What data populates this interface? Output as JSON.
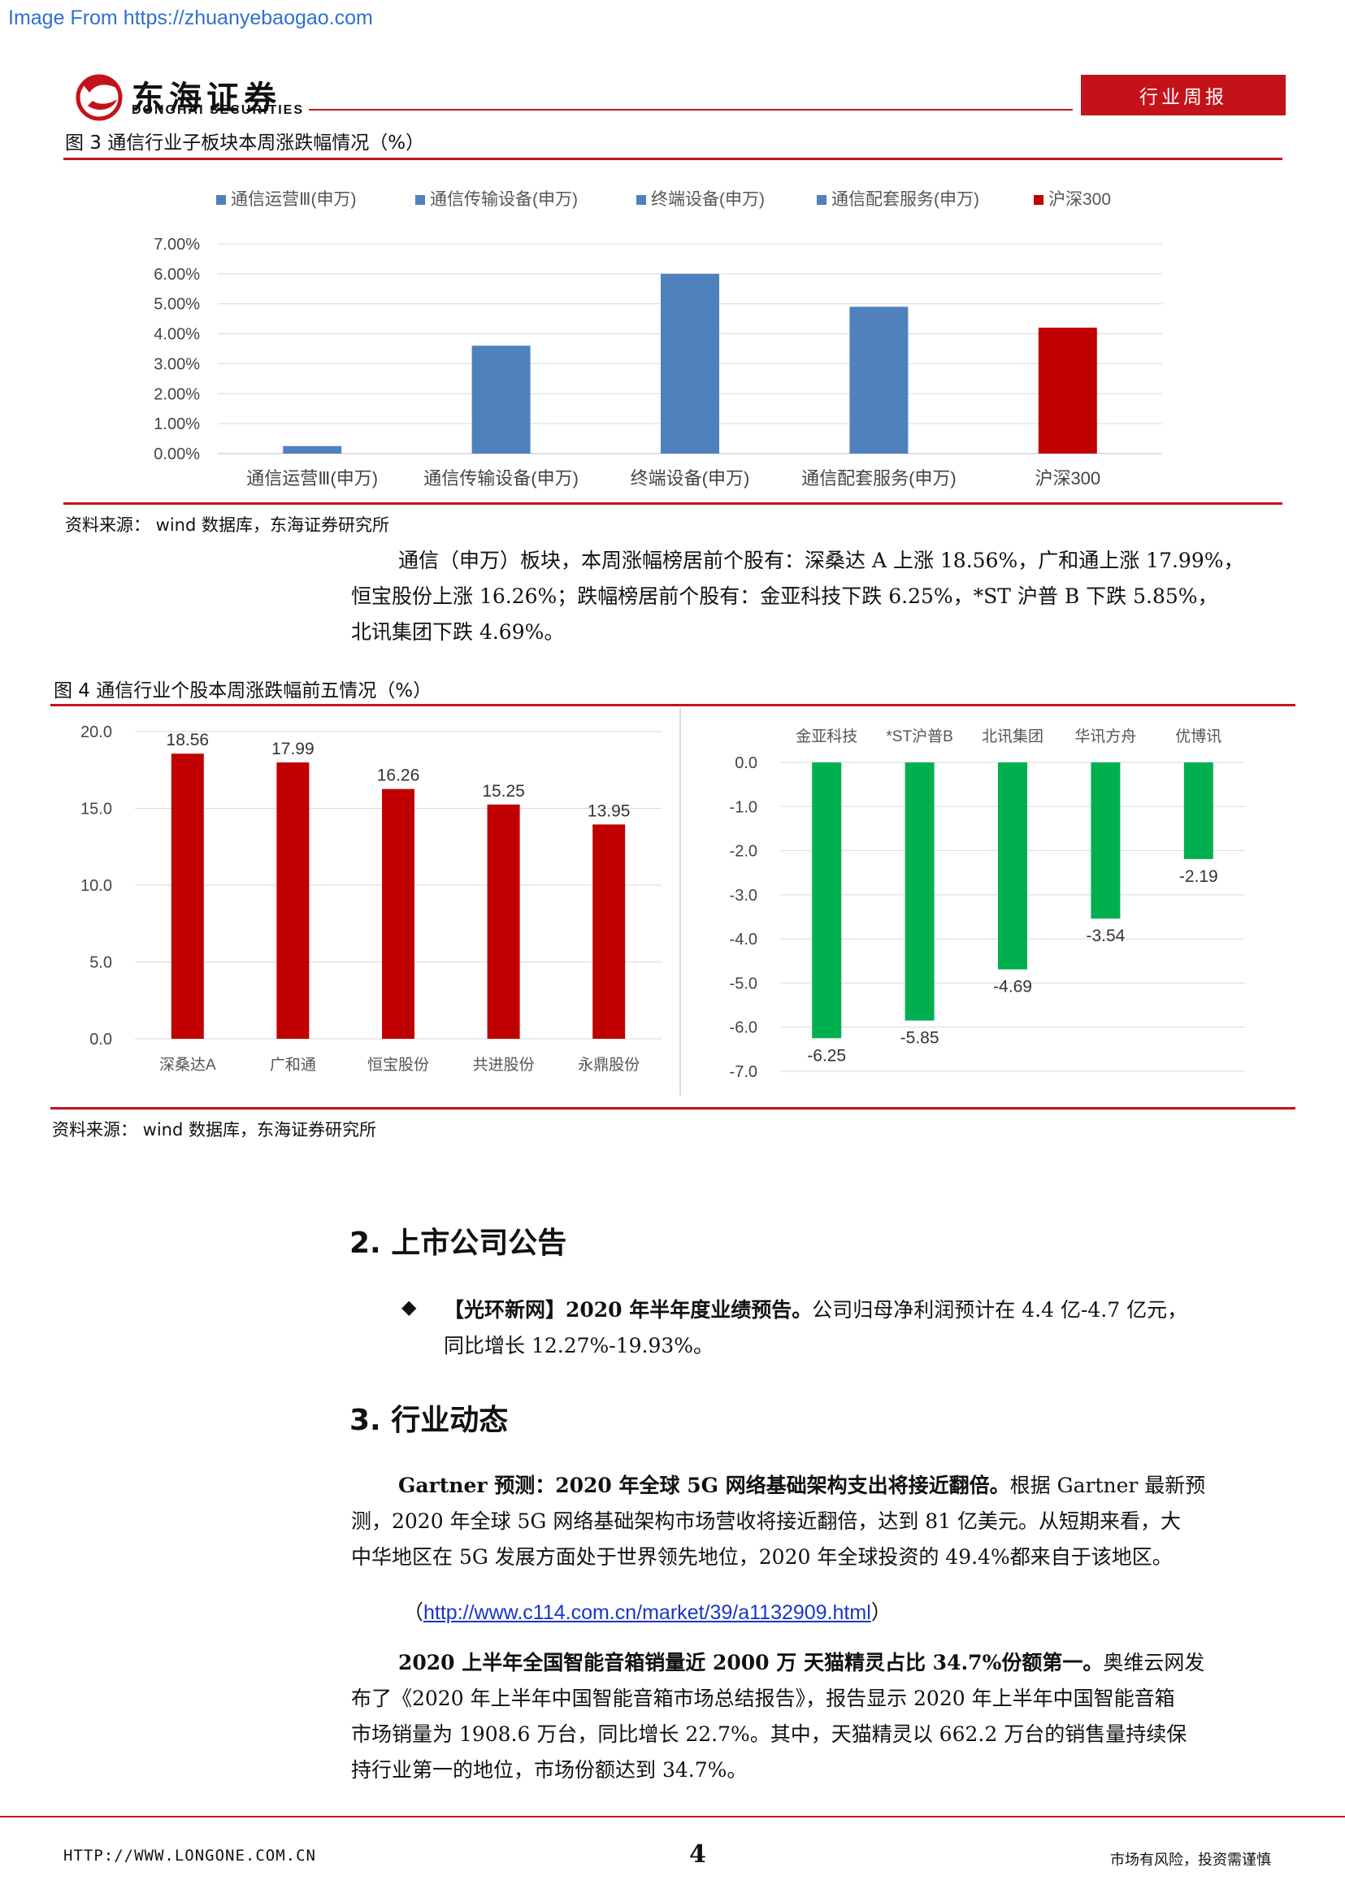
{
  "watermark": "Image From https://zhuanyebaogao.com",
  "header": {
    "brand_cn": "东海证券",
    "brand_en": "DONGHAI SECURITIES",
    "tag": "行业周报"
  },
  "figure3": {
    "title": "图 3    通信行业子板块本周涨跌幅情况（%）",
    "source": "资料来源：  wind 数据库，东海证券研究所",
    "chart_data": {
      "type": "bar",
      "categories": [
        "通信运营Ⅲ(申万)",
        "通信传输设备(申万)",
        "终端设备(申万)",
        "通信配套服务(申万)",
        "沪深300"
      ],
      "values": [
        0.25,
        3.6,
        6.0,
        4.9,
        4.2
      ],
      "legend": [
        "通信运营Ⅲ(申万)",
        "通信传输设备(申万)",
        "终端设备(申万)",
        "通信配套服务(申万)",
        "沪深300"
      ],
      "ylim": [
        0,
        7
      ],
      "yticks": [
        "0.00%",
        "1.00%",
        "2.00%",
        "3.00%",
        "4.00%",
        "5.00%",
        "6.00%",
        "7.00%"
      ],
      "colors": [
        "#4f81bd",
        "#4f81bd",
        "#4f81bd",
        "#4f81bd",
        "#c00000"
      ],
      "grid": true,
      "legend_position": "top"
    }
  },
  "para1": {
    "line1": "通信（申万）板块，本周涨幅榜居前个股有：深桑达 A 上涨 18.56%，广和通上涨 17.99%，",
    "line2": "恒宝股份上涨 16.26%；跌幅榜居前个股有：金亚科技下跌 6.25%，*ST 沪普 B 下跌 5.85%，",
    "line3": "北讯集团下跌 4.69%。"
  },
  "figure4": {
    "title": "图 4    通信行业个股本周涨跌幅前五情况（%）",
    "source": "资料来源：  wind 数据库，东海证券研究所",
    "chart_data": [
      {
        "type": "bar",
        "categories": [
          "深桑达A",
          "广和通",
          "恒宝股份",
          "共进股份",
          "永鼎股份"
        ],
        "values": [
          18.56,
          17.99,
          16.26,
          15.25,
          13.95
        ],
        "ylim": [
          0,
          20
        ],
        "yticks": [
          "0.0",
          "5.0",
          "10.0",
          "15.0",
          "20.0"
        ],
        "color": "#c00000",
        "grid": true
      },
      {
        "type": "bar",
        "categories": [
          "金亚科技",
          "*ST沪普B",
          "北讯集团",
          "华讯方舟",
          "优博讯"
        ],
        "values": [
          -6.25,
          -5.85,
          -4.69,
          -3.54,
          -2.19
        ],
        "ylim": [
          -7,
          0
        ],
        "yticks": [
          "0.0",
          "-1.0",
          "-2.0",
          "-3.0",
          "-4.0",
          "-5.0",
          "-6.0",
          "-7.0"
        ],
        "color": "#00b050",
        "grid": true
      }
    ]
  },
  "section2": {
    "heading": "2. 上市公司公告",
    "bullet_bold": "【光环新网】2020 年半年度业绩预告。",
    "bullet_text": "公司归母净利润预计在 4.4 亿-4.7 亿元，",
    "bullet_line2": "同比增长 12.27%-19.93%。"
  },
  "section3": {
    "heading": "3. 行业动态",
    "p1_bold": "Gartner 预测：2020 年全球 5G 网络基础架构支出将接近翻倍。",
    "p1_text": "根据 Gartner 最新预",
    "p1_line2": "测，2020 年全球 5G 网络基础架构市场营收将接近翻倍，达到 81 亿美元。从短期来看，大",
    "p1_line3": "中华地区在 5G 发展方面处于世界领先地位，2020 年全球投资的 49.4%都来自于该地区。",
    "link_open": "（",
    "link": "http://www.c114.com.cn/market/39/a1132909.html",
    "link_close": "）",
    "p2_bold": "2020 上半年全国智能音箱销量近 2000 万  天猫精灵占比 34.7%份额第一。",
    "p2_text": "奥维云网发",
    "p2_line2": "布了《2020 年上半年中国智能音箱市场总结报告》，报告显示 2020 年上半年中国智能音箱",
    "p2_line3": "市场销量为 1908.6 万台，同比增长 22.7%。其中，天猫精灵以 662.2 万台的销售量持续保",
    "p2_line4": "持行业第一的地位，市场份额达到 34.7%。"
  },
  "footer": {
    "url": "HTTP://WWW.LONGONE.COM.CN",
    "page": "4",
    "risk": "市场有风险，投资需谨慎"
  }
}
